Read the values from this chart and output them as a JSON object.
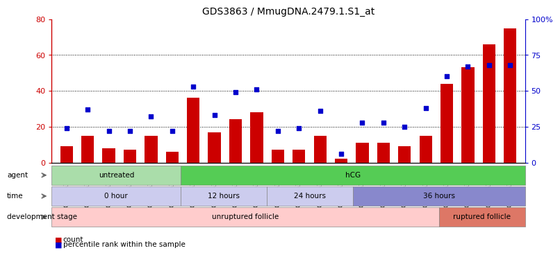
{
  "title": "GDS3863 / MmugDNA.2479.1.S1_at",
  "samples": [
    "GSM563219",
    "GSM563220",
    "GSM563221",
    "GSM563222",
    "GSM563223",
    "GSM563224",
    "GSM563225",
    "GSM563226",
    "GSM563227",
    "GSM563228",
    "GSM563229",
    "GSM563230",
    "GSM563231",
    "GSM563232",
    "GSM563233",
    "GSM563234",
    "GSM563235",
    "GSM563236",
    "GSM563237",
    "GSM563238",
    "GSM563239",
    "GSM563240"
  ],
  "counts": [
    9,
    15,
    8,
    7,
    15,
    6,
    36,
    17,
    24,
    28,
    7,
    7,
    15,
    2,
    11,
    11,
    9,
    15,
    44,
    53,
    66,
    75
  ],
  "percentiles": [
    24,
    37,
    22,
    22,
    32,
    22,
    53,
    33,
    49,
    51,
    22,
    24,
    36,
    6,
    28,
    28,
    25,
    38,
    60,
    67,
    68,
    68
  ],
  "bar_color": "#cc0000",
  "dot_color": "#0000cc",
  "ylim_left": [
    0,
    80
  ],
  "ylim_right": [
    0,
    100
  ],
  "yticks_left": [
    0,
    20,
    40,
    60,
    80
  ],
  "yticks_right": [
    0,
    25,
    50,
    75,
    100
  ],
  "color_light_green": "#aaddaa",
  "color_green": "#55cc55",
  "color_light_purple": "#ccccee",
  "color_purple": "#8888cc",
  "color_light_pink": "#ffcccc",
  "color_red_pink": "#dd7766",
  "n_samples": 22,
  "untreated_count": 6,
  "hcg_count": 16,
  "time_0h_count": 6,
  "time_12h_count": 4,
  "time_24h_count": 4,
  "time_36h_count": 8,
  "unruptured_count": 18,
  "ruptured_count": 4
}
